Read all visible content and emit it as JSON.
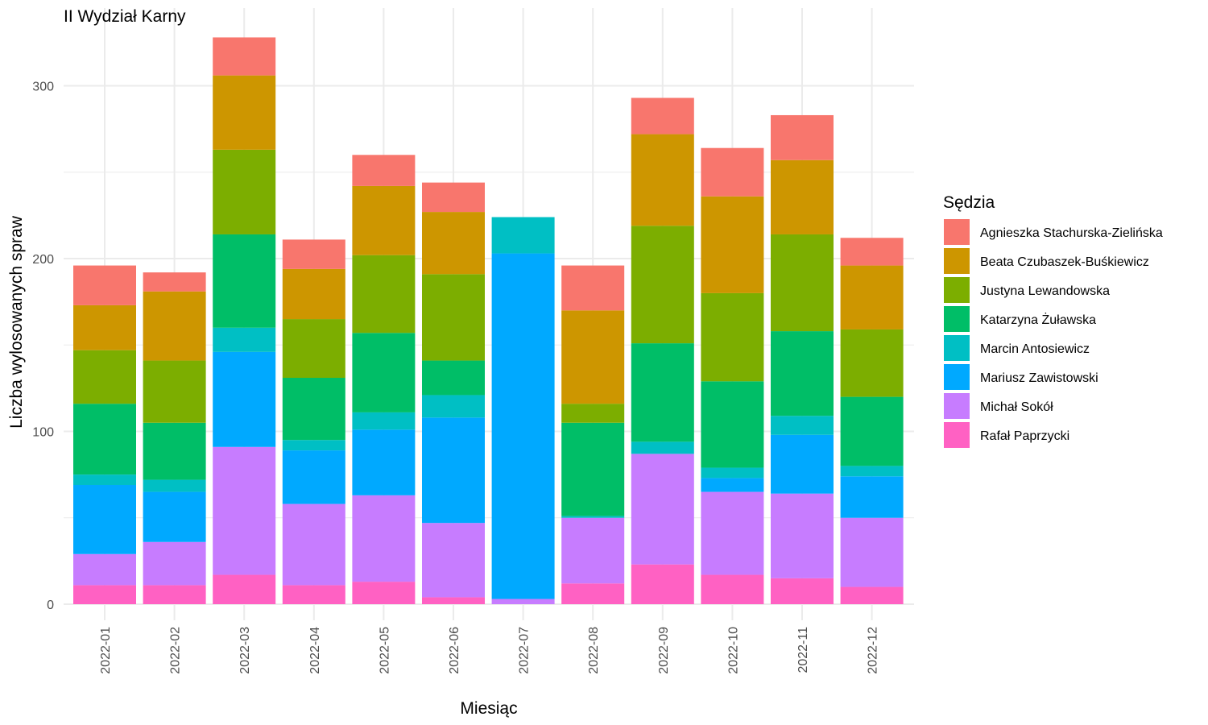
{
  "chart_data": {
    "type": "bar",
    "stacked": true,
    "title": "II Wydział Karny",
    "xlabel": "Miesiąc",
    "ylabel": "Liczba wylosowanych spraw",
    "legend_title": "Sędzia",
    "legend_position": "right",
    "grid": true,
    "ylim": [
      0,
      330
    ],
    "yticks": [
      0,
      100,
      200,
      300
    ],
    "categories": [
      "2022-01",
      "2022-02",
      "2022-03",
      "2022-04",
      "2022-05",
      "2022-06",
      "2022-07",
      "2022-08",
      "2022-09",
      "2022-10",
      "2022-11",
      "2022-12"
    ],
    "series": [
      {
        "name": "Rafał Paprzycki",
        "color": "#FF61C3",
        "values": [
          11,
          11,
          17,
          11,
          13,
          4,
          0,
          12,
          23,
          17,
          15,
          10
        ]
      },
      {
        "name": "Michał Sokół",
        "color": "#C77CFF",
        "values": [
          18,
          25,
          74,
          47,
          50,
          43,
          3,
          38,
          64,
          48,
          49,
          40
        ]
      },
      {
        "name": "Mariusz Zawistowski",
        "color": "#00A9FF",
        "values": [
          40,
          29,
          55,
          31,
          38,
          61,
          200,
          0,
          0,
          8,
          34,
          24
        ]
      },
      {
        "name": "Marcin Antosiewicz",
        "color": "#00BFC4",
        "values": [
          6,
          7,
          14,
          6,
          10,
          13,
          21,
          1,
          7,
          6,
          11,
          6
        ]
      },
      {
        "name": "Katarzyna Żuławska",
        "color": "#00BE67",
        "values": [
          41,
          33,
          54,
          36,
          46,
          20,
          0,
          54,
          57,
          50,
          49,
          40
        ]
      },
      {
        "name": "Justyna Lewandowska",
        "color": "#7CAE00",
        "values": [
          31,
          36,
          49,
          34,
          45,
          50,
          0,
          11,
          68,
          51,
          56,
          39
        ]
      },
      {
        "name": "Beata Czubaszek-Buśkiewicz",
        "color": "#CD9600",
        "values": [
          26,
          40,
          43,
          29,
          40,
          36,
          0,
          54,
          53,
          56,
          43,
          37
        ]
      },
      {
        "name": "Agnieszka Stachurska-Zielińska",
        "color": "#F8766D",
        "values": [
          23,
          11,
          22,
          17,
          18,
          17,
          0,
          26,
          21,
          28,
          26,
          16
        ]
      }
    ],
    "legend_order": [
      "Agnieszka Stachurska-Zielińska",
      "Beata Czubaszek-Buśkiewicz",
      "Justyna Lewandowska",
      "Katarzyna Żuławska",
      "Marcin Antosiewicz",
      "Mariusz Zawistowski",
      "Michał Sokół",
      "Rafał Paprzycki"
    ]
  }
}
